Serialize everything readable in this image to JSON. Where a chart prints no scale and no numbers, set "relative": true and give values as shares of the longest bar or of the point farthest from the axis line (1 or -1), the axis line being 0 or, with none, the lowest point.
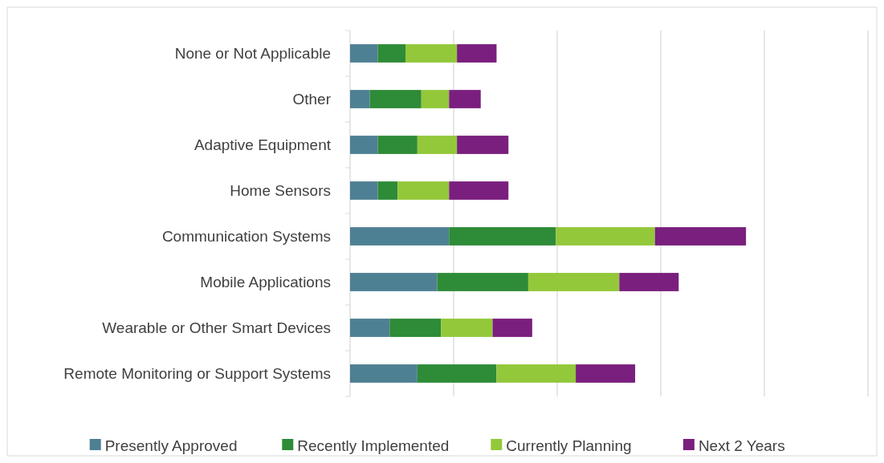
{
  "chart_data": {
    "type": "bar",
    "orientation": "horizontal",
    "stacked": true,
    "relative": true,
    "grid": "x",
    "legend": "bottom",
    "categories": [
      "None or Not Applicable",
      "Other",
      "Adaptive Equipment",
      "Home Sensors",
      "Communication Systems",
      "Mobile Applications",
      "Wearable or Other Smart Devices",
      "Remote Monitoring or Support Systems"
    ],
    "series": [
      {
        "name": "Presently Approved",
        "color": "#4e8093",
        "values": [
          0.07,
          0.05,
          0.07,
          0.07,
          0.25,
          0.22,
          0.1,
          0.17
        ]
      },
      {
        "name": "Recently Implemented",
        "color": "#2e8b37",
        "values": [
          0.07,
          0.13,
          0.1,
          0.05,
          0.27,
          0.23,
          0.13,
          0.2
        ]
      },
      {
        "name": "Currently Planning",
        "color": "#93c83a",
        "values": [
          0.13,
          0.07,
          0.1,
          0.13,
          0.25,
          0.23,
          0.13,
          0.2
        ]
      },
      {
        "name": "Next 2 Years",
        "color": "#7a1f7e",
        "values": [
          0.1,
          0.08,
          0.13,
          0.15,
          0.23,
          0.15,
          0.1,
          0.15
        ]
      }
    ]
  }
}
